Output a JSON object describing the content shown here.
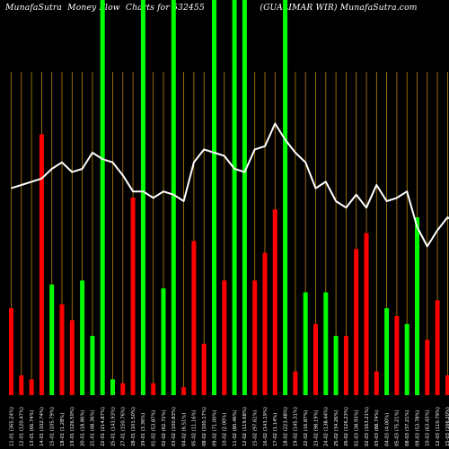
{
  "page_title": "MunafaSutra  Money Flow  Charts for 532455                    (GUALIMAR WIR) MunafaSutra.com",
  "colors": {
    "background": "#000000",
    "green": "#00ff00",
    "red": "#ff0000",
    "line": "#ffffff",
    "grid": "#b8860b"
  },
  "chart_data": {
    "type": "bar",
    "title": "MunafaSutra  Money Flow  Charts for 532455                    (GUALIMAR WIR) MunafaSutra.com",
    "xlabel": "",
    "ylabel": "",
    "grid": true,
    "ylim": [
      0,
      100
    ],
    "categories": [
      "11-01 (365.24%)",
      "12-01 (120.47%)",
      "13-01 (66.74%)",
      "14-01 (102.74%)",
      "15-01 (105.79%)",
      "18-01 (1.28%)",
      "19-01 (126.50%)",
      "20-01 (18.86%)",
      "21-01 (48.36%)",
      "22-01 (214.87%)",
      "25-01 (143.93%)",
      "27-01 (150.76%)",
      "28-01 (101.50%)",
      "29-01 (3.36%)",
      "01-02 (53.87%)",
      "02-02 (62.72%)",
      "03-02 (100.83%)",
      "04-02 (6.51%)",
      "05-02 (11.16%)",
      "08-02 (100.17%)",
      "09-02 (71.00%)",
      "10-02 (2.00%)",
      "11-02 (80.46%)",
      "12-02 (119.68%)",
      "15-02 (97.61%)",
      "16-02 (143.19%)",
      "17-02 (1.14%)",
      "18-02 (223.48%)",
      "19-02 (145.31%)",
      "22-02 (16.87%)",
      "23-02 (98.19%)",
      "24-02 (138.44%)",
      "25-02 (34.26%)",
      "26-02 (126.23%)",
      "01-03 (38.93%)",
      "02-03 (163.21%)",
      "03-03 (88.74%)",
      "04-03 (4.00%)",
      "05-03 (75.21%)",
      "08-03 (37.21%)",
      "09-03 (53.78%)",
      "10-03 (63.43%)",
      "12-03 (110.79%)",
      "15-03 (166.20%)",
      "16-03 (11.16%)",
      "17-03 (130.57%)",
      "18-03 (88.14%)"
    ],
    "series": [
      {
        "values": [
          22,
          5,
          4,
          66,
          28,
          23,
          19,
          29,
          15,
          100,
          4,
          3,
          50,
          100,
          3,
          27,
          100,
          2,
          39,
          13,
          100,
          29,
          100,
          100,
          29,
          36,
          47,
          100,
          6,
          26,
          18,
          26,
          15,
          15,
          37,
          41,
          6,
          22,
          20,
          18,
          45,
          14,
          24,
          5,
          11,
          48,
          35
        ],
        "bar_colors": [
          "red",
          "red",
          "red",
          "red",
          "green",
          "red",
          "red",
          "green",
          "green",
          "green",
          "green",
          "red",
          "red",
          "green",
          "red",
          "green",
          "green",
          "red",
          "red",
          "red",
          "green",
          "red",
          "green",
          "green",
          "red",
          "red",
          "red",
          "green",
          "red",
          "green",
          "red",
          "green",
          "green",
          "red",
          "red",
          "red",
          "red",
          "green",
          "red",
          "green",
          "green",
          "red",
          "red",
          "red",
          "green",
          "red",
          "green"
        ]
      },
      {
        "type": "line",
        "values": [
          64,
          65,
          66,
          67,
          70,
          72,
          69,
          70,
          75,
          73,
          72,
          68,
          63,
          63,
          61,
          63,
          62,
          60,
          72,
          76,
          75,
          74,
          70,
          69,
          76,
          77,
          84,
          79,
          75,
          72,
          64,
          66,
          60,
          58,
          62,
          58,
          65,
          60,
          61,
          63,
          52,
          46,
          51,
          55,
          53,
          54,
          53
        ]
      }
    ],
    "line_values_order_note_free": true
  }
}
